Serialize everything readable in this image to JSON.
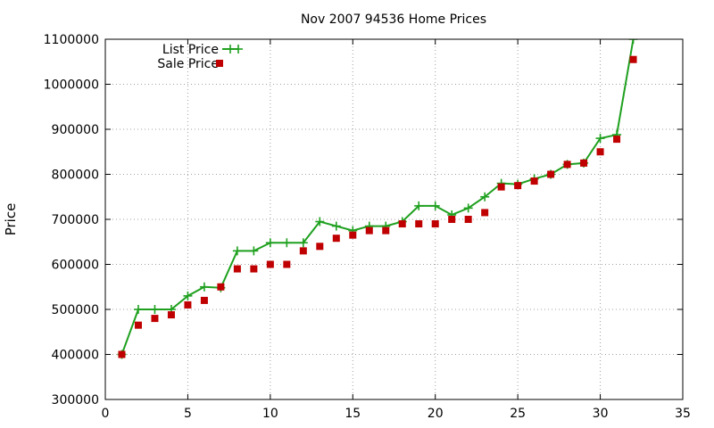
{
  "chart_data": {
    "type": "line",
    "title": "Nov 2007 94536 Home Prices",
    "xlabel": "",
    "ylabel": "Price",
    "xlim": [
      0,
      35
    ],
    "ylim": [
      300000,
      1100000
    ],
    "xticks": [
      0,
      5,
      10,
      15,
      20,
      25,
      30,
      35
    ],
    "yticks": [
      300000,
      400000,
      500000,
      600000,
      700000,
      800000,
      900000,
      1000000,
      1100000
    ],
    "grid": true,
    "legend_position": "top-left",
    "series": [
      {
        "name": "List Price",
        "style": "line+plus",
        "color": "#1ea01e",
        "x": [
          1,
          2,
          3,
          4,
          5,
          6,
          7,
          8,
          9,
          10,
          11,
          12,
          13,
          14,
          15,
          16,
          17,
          18,
          19,
          20,
          21,
          22,
          23,
          24,
          25,
          26,
          27,
          28,
          29,
          30,
          31,
          32
        ],
        "y": [
          400000,
          500000,
          500000,
          500000,
          530000,
          550000,
          548000,
          630000,
          630000,
          648000,
          648000,
          648000,
          695000,
          685000,
          675000,
          685000,
          685000,
          695000,
          730000,
          730000,
          710000,
          725000,
          750000,
          780000,
          778000,
          790000,
          800000,
          822000,
          825000,
          880000,
          888000,
          1100000
        ]
      },
      {
        "name": "Sale Price",
        "style": "square",
        "color": "#c00000",
        "x": [
          1,
          2,
          3,
          4,
          5,
          6,
          7,
          8,
          9,
          10,
          11,
          12,
          13,
          14,
          15,
          16,
          17,
          18,
          19,
          20,
          21,
          22,
          23,
          24,
          25,
          26,
          27,
          28,
          29,
          30,
          31,
          32
        ],
        "y": [
          400000,
          465000,
          480000,
          488000,
          510000,
          520000,
          550000,
          590000,
          590000,
          600000,
          600000,
          630000,
          640000,
          658000,
          665000,
          675000,
          675000,
          690000,
          690000,
          690000,
          700000,
          700000,
          715000,
          772000,
          775000,
          785000,
          800000,
          822000,
          825000,
          850000,
          878000,
          1055000
        ]
      }
    ]
  }
}
